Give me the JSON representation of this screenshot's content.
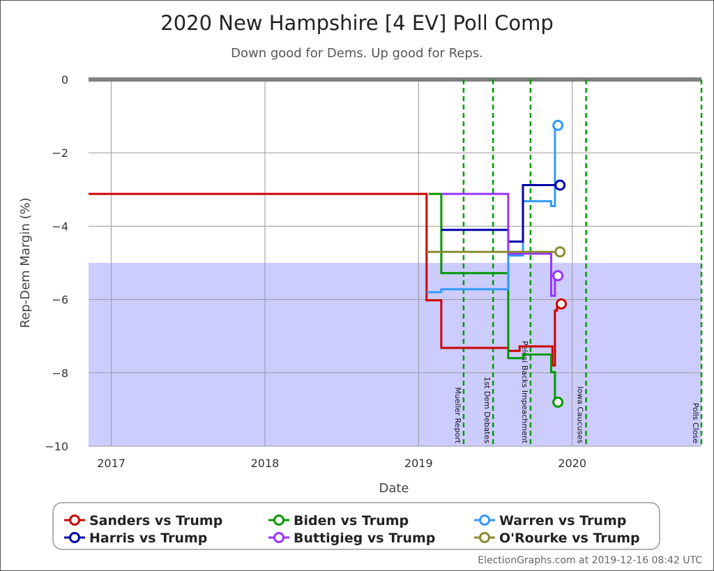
{
  "chart_data": {
    "type": "line",
    "title": "2020 New Hampshire [4 EV] Poll Comp",
    "subtitle": "Down good for Dems. Up good for Reps.",
    "xlabel": "Date",
    "ylabel": "Rep-Dem Margin (%)",
    "x_range": [
      "2016-11-08",
      "2020-11-03"
    ],
    "ylim": [
      -10,
      0
    ],
    "x_ticks": [
      {
        "date": "2017-01-01",
        "label": "2017"
      },
      {
        "date": "2018-01-01",
        "label": "2018"
      },
      {
        "date": "2019-01-01",
        "label": "2019"
      },
      {
        "date": "2020-01-01",
        "label": "2020"
      }
    ],
    "y_ticks": [
      {
        "value": 0,
        "label": "0"
      },
      {
        "value": -2,
        "label": "−2"
      },
      {
        "value": -4,
        "label": "−4"
      },
      {
        "value": -6,
        "label": "−6"
      },
      {
        "value": -8,
        "label": "−8"
      },
      {
        "value": -10,
        "label": "−10"
      }
    ],
    "shaded_band": {
      "from": -10,
      "to": -5,
      "color": "#ccccff"
    },
    "events": [
      {
        "date": "2019-04-18",
        "label": "Mueller Report"
      },
      {
        "date": "2019-06-27",
        "label": "1st Dem Debates"
      },
      {
        "date": "2019-09-24",
        "label": "Pelosi Backs Impeachment"
      },
      {
        "date": "2020-02-03",
        "label": "Iowa Caucuses"
      },
      {
        "date": "2020-11-03",
        "label": "Polls Close"
      }
    ],
    "series": [
      {
        "name": "Sanders vs Trump",
        "color": "#cc0000",
        "points": [
          {
            "x": "2016-11-08",
            "y": -3.12
          },
          {
            "x": "2019-01-20",
            "y": -3.12
          },
          {
            "x": "2019-01-20",
            "y": -6.02
          },
          {
            "x": "2019-02-24",
            "y": -6.02
          },
          {
            "x": "2019-02-24",
            "y": -7.32
          },
          {
            "x": "2019-08-02",
            "y": -7.32
          },
          {
            "x": "2019-08-02",
            "y": -7.4
          },
          {
            "x": "2019-08-29",
            "y": -7.4
          },
          {
            "x": "2019-08-29",
            "y": -7.28
          },
          {
            "x": "2019-11-15",
            "y": -7.28
          },
          {
            "x": "2019-11-15",
            "y": -7.8
          },
          {
            "x": "2019-11-21",
            "y": -7.8
          },
          {
            "x": "2019-11-21",
            "y": -6.3
          },
          {
            "x": "2019-11-26",
            "y": -6.3
          },
          {
            "x": "2019-11-26",
            "y": -6.12
          },
          {
            "x": "2019-12-06",
            "y": -6.12
          }
        ]
      },
      {
        "name": "Biden vs Trump",
        "color": "#009900",
        "points": [
          {
            "x": "2019-01-25",
            "y": -3.12
          },
          {
            "x": "2019-02-24",
            "y": -3.12
          },
          {
            "x": "2019-02-24",
            "y": -5.28
          },
          {
            "x": "2019-08-02",
            "y": -5.28
          },
          {
            "x": "2019-08-02",
            "y": -7.6
          },
          {
            "x": "2019-09-06",
            "y": -7.6
          },
          {
            "x": "2019-09-06",
            "y": -7.5
          },
          {
            "x": "2019-11-12",
            "y": -7.5
          },
          {
            "x": "2019-11-12",
            "y": -7.98
          },
          {
            "x": "2019-11-21",
            "y": -7.98
          },
          {
            "x": "2019-11-21",
            "y": -8.8
          },
          {
            "x": "2019-11-28",
            "y": -8.8
          }
        ]
      },
      {
        "name": "Warren vs Trump",
        "color": "#3399ff",
        "points": [
          {
            "x": "2019-01-20",
            "y": -5.8
          },
          {
            "x": "2019-02-24",
            "y": -5.8
          },
          {
            "x": "2019-02-24",
            "y": -5.72
          },
          {
            "x": "2019-08-02",
            "y": -5.72
          },
          {
            "x": "2019-08-02",
            "y": -4.8
          },
          {
            "x": "2019-09-06",
            "y": -4.8
          },
          {
            "x": "2019-09-06",
            "y": -3.32
          },
          {
            "x": "2019-11-12",
            "y": -3.32
          },
          {
            "x": "2019-11-12",
            "y": -3.45
          },
          {
            "x": "2019-11-21",
            "y": -3.45
          },
          {
            "x": "2019-11-21",
            "y": -1.25
          },
          {
            "x": "2019-11-28",
            "y": -1.25
          }
        ]
      },
      {
        "name": "Harris vs Trump",
        "color": "#0000aa",
        "points": [
          {
            "x": "2019-02-24",
            "y": -4.1
          },
          {
            "x": "2019-08-02",
            "y": -4.1
          },
          {
            "x": "2019-08-02",
            "y": -4.42
          },
          {
            "x": "2019-09-06",
            "y": -4.42
          },
          {
            "x": "2019-09-06",
            "y": -2.88
          },
          {
            "x": "2019-12-03",
            "y": -2.88
          }
        ]
      },
      {
        "name": "Buttigieg vs Trump",
        "color": "#9933ff",
        "points": [
          {
            "x": "2019-02-24",
            "y": -3.12
          },
          {
            "x": "2019-08-02",
            "y": -3.12
          },
          {
            "x": "2019-08-02",
            "y": -4.75
          },
          {
            "x": "2019-11-12",
            "y": -4.75
          },
          {
            "x": "2019-11-12",
            "y": -5.9
          },
          {
            "x": "2019-11-21",
            "y": -5.9
          },
          {
            "x": "2019-11-21",
            "y": -5.35
          },
          {
            "x": "2019-11-28",
            "y": -5.35
          }
        ]
      },
      {
        "name": "O'Rourke vs Trump",
        "color": "#8b8b33",
        "points": [
          {
            "x": "2019-01-20",
            "y": -4.7
          },
          {
            "x": "2019-12-03",
            "y": -4.7
          }
        ]
      }
    ],
    "legend_position": "bottom",
    "grid": true
  },
  "legend_order": [
    "Sanders vs Trump",
    "Biden vs Trump",
    "Warren vs Trump",
    "Harris vs Trump",
    "Buttigieg vs Trump",
    "O'Rourke vs Trump"
  ],
  "credit": "ElectionGraphs.com at 2019-12-16 08:42 UTC"
}
